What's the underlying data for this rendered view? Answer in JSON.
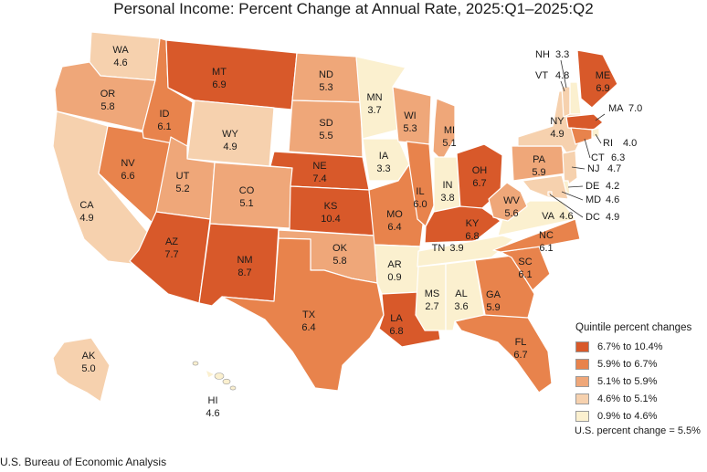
{
  "title": "Personal Income: Percent Change at Annual Rate, 2025:Q1–2025:Q2",
  "source": "U.S. Bureau of Economic Analysis",
  "us_change_label": "U.S. percent change = 5.5%",
  "legend": {
    "title": "Quintile percent changes",
    "items": [
      {
        "label": "6.7% to 10.4%",
        "color": "#d8592a"
      },
      {
        "label": "5.9% to 6.7%",
        "color": "#e8834c"
      },
      {
        "label": "5.1% to 5.9%",
        "color": "#efa779"
      },
      {
        "label": "4.6% to 5.1%",
        "color": "#f6d1ae"
      },
      {
        "label": "0.9% to 4.6%",
        "color": "#fbf0cf"
      }
    ]
  },
  "states": [
    {
      "abbr": "WA",
      "value": "4.6",
      "color": "#f6d1ae"
    },
    {
      "abbr": "OR",
      "value": "5.8",
      "color": "#efa779"
    },
    {
      "abbr": "CA",
      "value": "4.9",
      "color": "#f6d1ae"
    },
    {
      "abbr": "NV",
      "value": "6.6",
      "color": "#e8834c"
    },
    {
      "abbr": "ID",
      "value": "6.1",
      "color": "#e8834c"
    },
    {
      "abbr": "MT",
      "value": "6.9",
      "color": "#d8592a"
    },
    {
      "abbr": "WY",
      "value": "4.9",
      "color": "#f6d1ae"
    },
    {
      "abbr": "UT",
      "value": "5.2",
      "color": "#efa779"
    },
    {
      "abbr": "AZ",
      "value": "7.7",
      "color": "#d8592a"
    },
    {
      "abbr": "CO",
      "value": "5.1",
      "color": "#efa779"
    },
    {
      "abbr": "NM",
      "value": "8.7",
      "color": "#d8592a"
    },
    {
      "abbr": "ND",
      "value": "5.3",
      "color": "#efa779"
    },
    {
      "abbr": "SD",
      "value": "5.5",
      "color": "#efa779"
    },
    {
      "abbr": "NE",
      "value": "7.4",
      "color": "#d8592a"
    },
    {
      "abbr": "KS",
      "value": "10.4",
      "color": "#d8592a"
    },
    {
      "abbr": "OK",
      "value": "5.8",
      "color": "#efa779"
    },
    {
      "abbr": "TX",
      "value": "6.4",
      "color": "#e8834c"
    },
    {
      "abbr": "MN",
      "value": "3.7",
      "color": "#fbf0cf"
    },
    {
      "abbr": "IA",
      "value": "3.3",
      "color": "#fbf0cf"
    },
    {
      "abbr": "MO",
      "value": "6.4",
      "color": "#e8834c"
    },
    {
      "abbr": "AR",
      "value": "0.9",
      "color": "#fbf0cf"
    },
    {
      "abbr": "LA",
      "value": "6.8",
      "color": "#d8592a"
    },
    {
      "abbr": "WI",
      "value": "5.3",
      "color": "#efa779"
    },
    {
      "abbr": "IL",
      "value": "6.0",
      "color": "#e8834c"
    },
    {
      "abbr": "MI",
      "value": "5.1",
      "color": "#efa779"
    },
    {
      "abbr": "IN",
      "value": "3.8",
      "color": "#fbf0cf"
    },
    {
      "abbr": "OH",
      "value": "6.7",
      "color": "#d8592a"
    },
    {
      "abbr": "KY",
      "value": "6.8",
      "color": "#d8592a"
    },
    {
      "abbr": "TN",
      "value": "3.9",
      "color": "#fbf0cf"
    },
    {
      "abbr": "MS",
      "value": "2.7",
      "color": "#fbf0cf"
    },
    {
      "abbr": "AL",
      "value": "3.6",
      "color": "#fbf0cf"
    },
    {
      "abbr": "GA",
      "value": "5.9",
      "color": "#e8834c"
    },
    {
      "abbr": "FL",
      "value": "6.7",
      "color": "#e8834c"
    },
    {
      "abbr": "SC",
      "value": "6.1",
      "color": "#e8834c"
    },
    {
      "abbr": "NC",
      "value": "6.1",
      "color": "#e8834c"
    },
    {
      "abbr": "VA",
      "value": "4.6",
      "color": "#fbf0cf"
    },
    {
      "abbr": "WV",
      "value": "5.6",
      "color": "#efa779"
    },
    {
      "abbr": "PA",
      "value": "5.9",
      "color": "#efa779"
    },
    {
      "abbr": "NY",
      "value": "4.9",
      "color": "#f6d1ae"
    },
    {
      "abbr": "VT",
      "value": "4.8",
      "color": "#f6d1ae"
    },
    {
      "abbr": "NH",
      "value": "3.3",
      "color": "#fbf0cf"
    },
    {
      "abbr": "ME",
      "value": "6.9",
      "color": "#d8592a"
    },
    {
      "abbr": "MA",
      "value": "7.0",
      "color": "#d8592a"
    },
    {
      "abbr": "RI",
      "value": "4.0",
      "color": "#fbf0cf"
    },
    {
      "abbr": "CT",
      "value": "6.3",
      "color": "#e8834c"
    },
    {
      "abbr": "NJ",
      "value": "4.7",
      "color": "#f6d1ae"
    },
    {
      "abbr": "DE",
      "value": "4.2",
      "color": "#fbf0cf"
    },
    {
      "abbr": "MD",
      "value": "4.6",
      "color": "#f6d1ae"
    },
    {
      "abbr": "DC",
      "value": "4.9",
      "color": "#f6d1ae"
    },
    {
      "abbr": "AK",
      "value": "5.0",
      "color": "#f6d1ae"
    },
    {
      "abbr": "HI",
      "value": "4.6",
      "color": "#fbf0cf"
    }
  ]
}
